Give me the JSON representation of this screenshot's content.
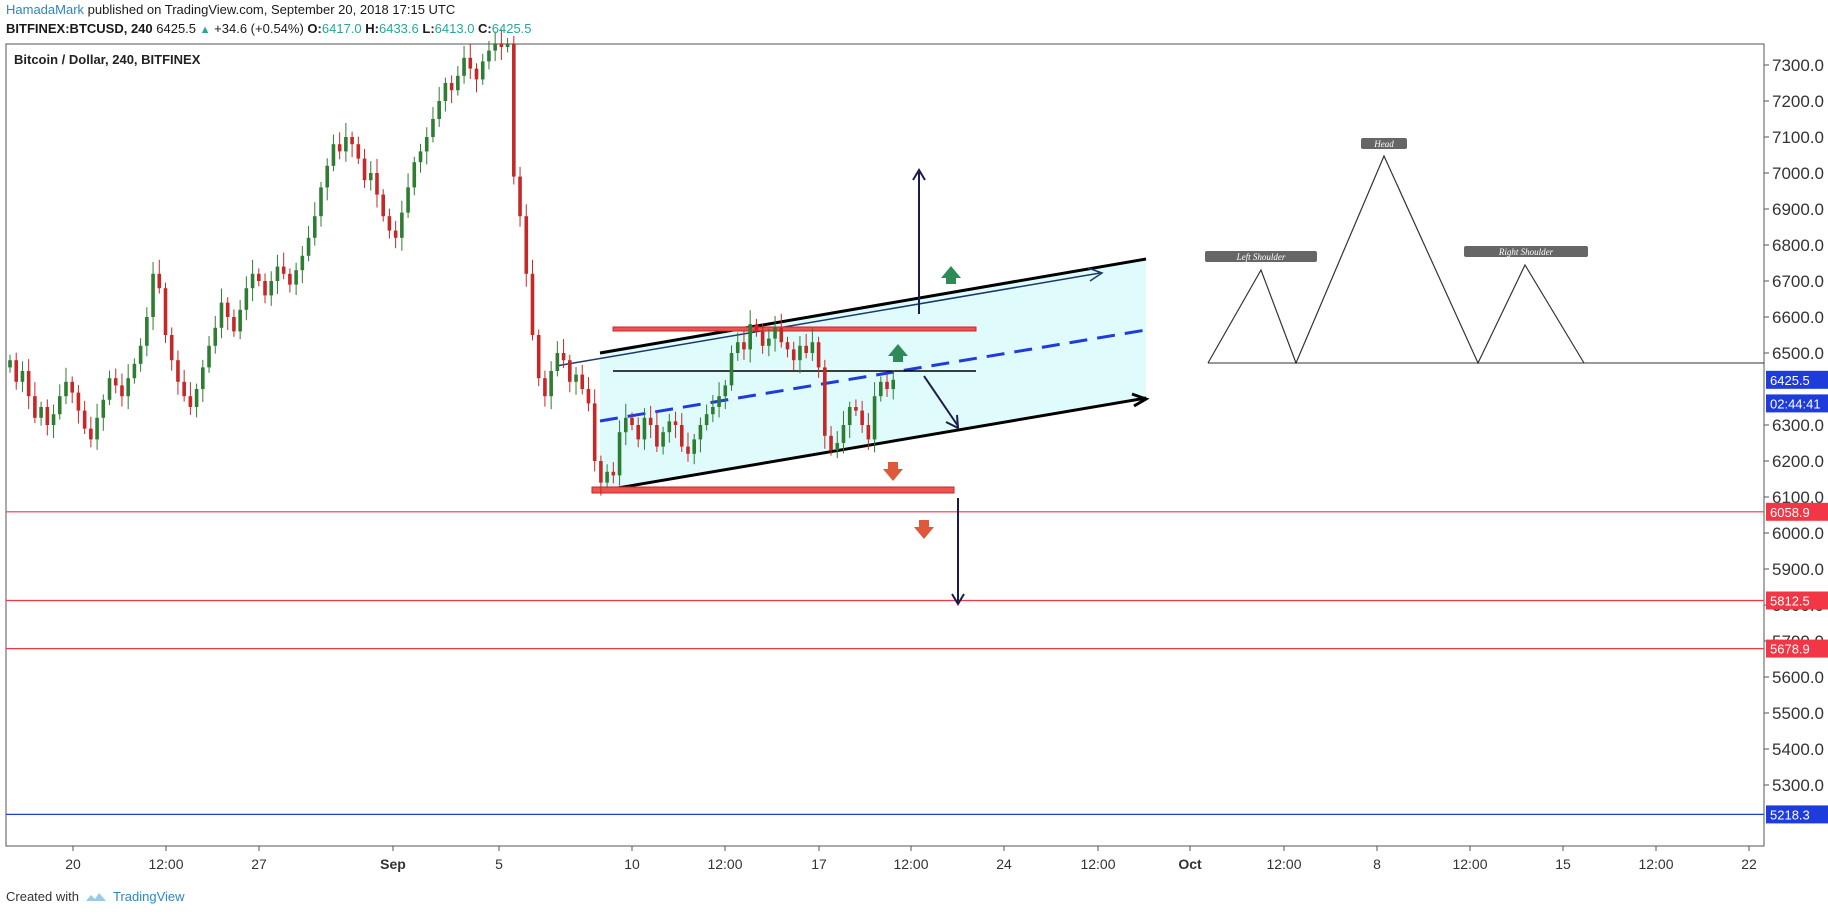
{
  "header": {
    "author": "HamadaMark",
    "published": "published on TradingView.com, September 20, 2018 17:15 UTC",
    "symbol": "BITFINEX:BTCUSD, 240",
    "last": "6425.5",
    "change": "+34.6 (+0.54%)",
    "o_label": "O:",
    "o": "6417.0",
    "h_label": "H:",
    "h": "6433.6",
    "l_label": "L:",
    "l": "6413.0",
    "c_label": "C:",
    "c": "6425.5"
  },
  "footer": {
    "created": "Created with",
    "brand": "TradingView"
  },
  "colors": {
    "up": "#2e7d32",
    "down": "#c62828",
    "channel_fill": "#e0fbfb",
    "support": "#f23645",
    "blue_level": "#1e3cdc",
    "arrow": "#1b1b4d"
  },
  "chart_data": {
    "type": "candlestick",
    "title": "Bitcoin / Dollar, 240, BITFINEX",
    "ylim": [
      5000,
      7370
    ],
    "y_ticks": [
      "7300.0",
      "7200.0",
      "7100.0",
      "7000.0",
      "6900.0",
      "6800.0",
      "6700.0",
      "6600.0",
      "6500.0",
      "6300.0",
      "6200.0",
      "6100.0",
      "6000.0",
      "5900.0",
      "5800.0",
      "5700.0",
      "5600.0",
      "5500.0",
      "5400.0",
      "5300.0"
    ],
    "x_ticks": [
      "20",
      "12:00",
      "27",
      "Sep",
      "5",
      "10",
      "12:00",
      "17",
      "12:00",
      "24",
      "12:00",
      "Oct",
      "12:00",
      "8",
      "12:00",
      "15",
      "12:00",
      "22"
    ],
    "price_labels": [
      {
        "text": "6425.5",
        "value": 6425.5,
        "color": "#1e3cdc"
      },
      {
        "text": "02:44:41",
        "value": 6360,
        "color": "#1e3cdc"
      },
      {
        "text": "6058.9",
        "value": 6058.9,
        "color": "#f23645"
      },
      {
        "text": "5812.5",
        "value": 5812.5,
        "color": "#f23645"
      },
      {
        "text": "5678.9",
        "value": 5678.9,
        "color": "#f23645"
      },
      {
        "text": "5218.3",
        "value": 5218.3,
        "color": "#1e3cdc"
      }
    ],
    "horizontal_levels": [
      {
        "value": 6058.9,
        "color": "#f23645"
      },
      {
        "value": 5812.5,
        "color": "#f23645"
      },
      {
        "value": 5678.9,
        "color": "#f23645"
      },
      {
        "value": 5218.3,
        "color": "#1e3cdc"
      }
    ],
    "close_series": [
      6480,
      6420,
      6450,
      6380,
      6320,
      6350,
      6300,
      6330,
      6380,
      6420,
      6390,
      6340,
      6290,
      6260,
      6320,
      6370,
      6430,
      6410,
      6380,
      6430,
      6470,
      6520,
      6600,
      6720,
      6680,
      6550,
      6480,
      6420,
      6380,
      6350,
      6400,
      6460,
      6520,
      6570,
      6640,
      6600,
      6560,
      6620,
      6680,
      6720,
      6700,
      6660,
      6700,
      6740,
      6720,
      6690,
      6730,
      6770,
      6820,
      6880,
      6960,
      7020,
      7080,
      7060,
      7100,
      7080,
      7040,
      6980,
      7000,
      6940,
      6880,
      6840,
      6820,
      6890,
      6960,
      7030,
      7060,
      7100,
      7150,
      7200,
      7250,
      7230,
      7270,
      7320,
      7290,
      7260,
      7310,
      7340,
      7360,
      7350,
      7360,
      6990,
      6880,
      6720,
      6550,
      6430,
      6380,
      6450,
      6500,
      6480,
      6420,
      6440,
      6400,
      6360,
      6200,
      6140,
      6170,
      6160,
      6280,
      6320,
      6300,
      6260,
      6320,
      6300,
      6240,
      6280,
      6310,
      6300,
      6240,
      6220,
      6260,
      6300,
      6330,
      6350,
      6380,
      6410,
      6500,
      6530,
      6510,
      6580,
      6560,
      6520,
      6540,
      6570,
      6530,
      6510,
      6480,
      6520,
      6500,
      6530,
      6460,
      6270,
      6230,
      6250,
      6300,
      6350,
      6340,
      6300,
      6260,
      6380,
      6420,
      6400,
      6425.5
    ],
    "annotations": [
      "Left Shoulder",
      "Head",
      "Right Shoulder"
    ]
  }
}
